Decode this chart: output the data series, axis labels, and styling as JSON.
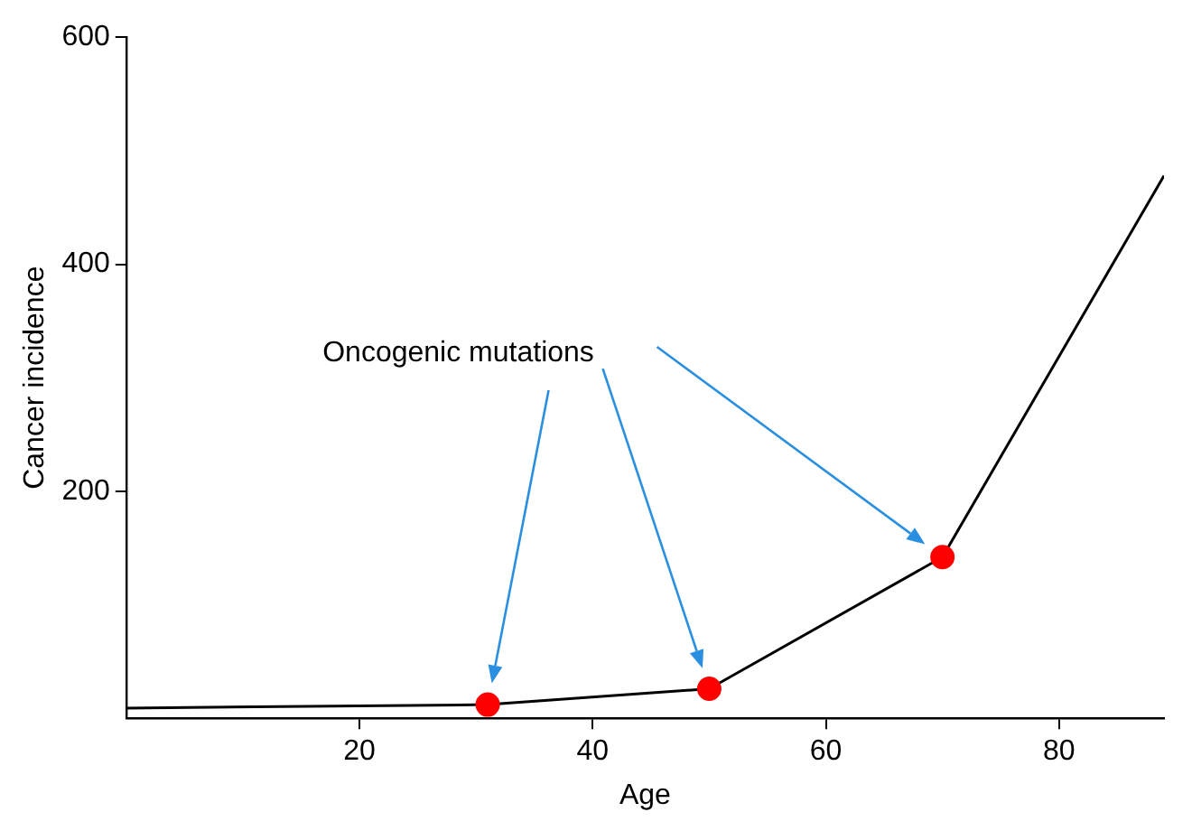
{
  "chart_data": {
    "type": "line",
    "xlabel": "Age",
    "ylabel": "Cancer incidence",
    "xlim": [
      0,
      89
    ],
    "ylim": [
      0,
      600
    ],
    "xticks": [
      20,
      40,
      60,
      80
    ],
    "yticks": [
      200,
      400,
      600
    ],
    "grid": false,
    "legend": false,
    "series": [
      {
        "color": "#000000",
        "marker": "none",
        "x": [
          0,
          31,
          50,
          70,
          89
        ],
        "values": [
          9,
          12,
          26,
          142,
          478
        ]
      },
      {
        "type": "scatter",
        "color": "#ff0000",
        "marker": "circle",
        "x": [
          31,
          50,
          70
        ],
        "values": [
          12,
          26,
          142
        ]
      }
    ],
    "annotations": [
      "Oncogenic mutations"
    ]
  }
}
